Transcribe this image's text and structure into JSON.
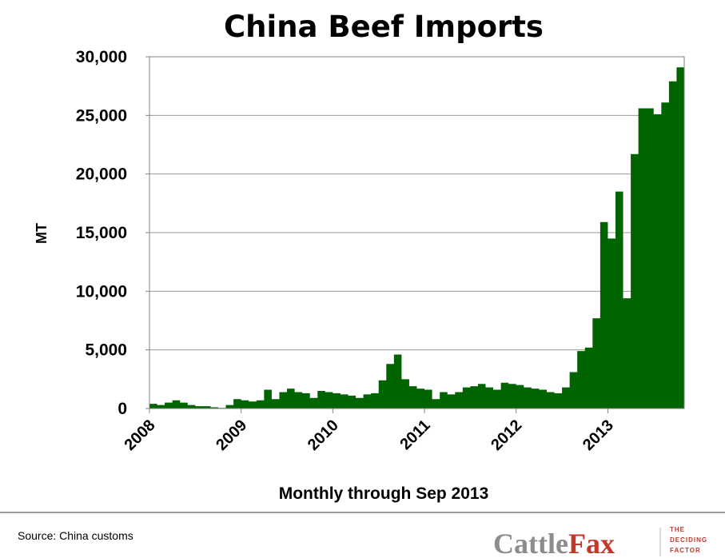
{
  "chart_data": {
    "type": "area",
    "title": "China Beef Imports",
    "xlabel": "Monthly through Sep 2013",
    "ylabel": "MT",
    "ylim": [
      0,
      30000
    ],
    "yticks": [
      0,
      5000,
      10000,
      15000,
      20000,
      25000,
      30000
    ],
    "ytick_labels": [
      "0",
      "5,000",
      "10,000",
      "15,000",
      "20,000",
      "25,000",
      "30,000"
    ],
    "xtick_labels": [
      "2008",
      "2009",
      "2010",
      "2011",
      "2012",
      "2013"
    ],
    "grid": true,
    "color": "#006400",
    "start": "2008-01",
    "series": [
      {
        "values": [
          400,
          300,
          500,
          700,
          500,
          300,
          200,
          200,
          100,
          50,
          300,
          800,
          700,
          600,
          700,
          1600,
          800,
          1400,
          1700,
          1400,
          1300,
          900,
          1500,
          1400,
          1300,
          1200,
          1100,
          900,
          1200,
          1300,
          2400,
          3800,
          4600,
          2500,
          1900,
          1700,
          1600,
          800,
          1400,
          1200,
          1400,
          1800,
          1900,
          2100,
          1800,
          1600,
          2200,
          2100,
          2000,
          1800,
          1700,
          1600,
          1400,
          1300,
          1800,
          3100,
          4900,
          5200,
          7700,
          15900,
          14500,
          18500,
          9400,
          21700,
          25600,
          25600,
          25100,
          26100,
          27900,
          29100
        ]
      }
    ]
  },
  "footer": {
    "source": "Source:  China customs",
    "logo_part1": "Cattle",
    "logo_part2": "Fax",
    "logo_tag": [
      "THE",
      "DECIDING",
      "FACTOR"
    ]
  }
}
